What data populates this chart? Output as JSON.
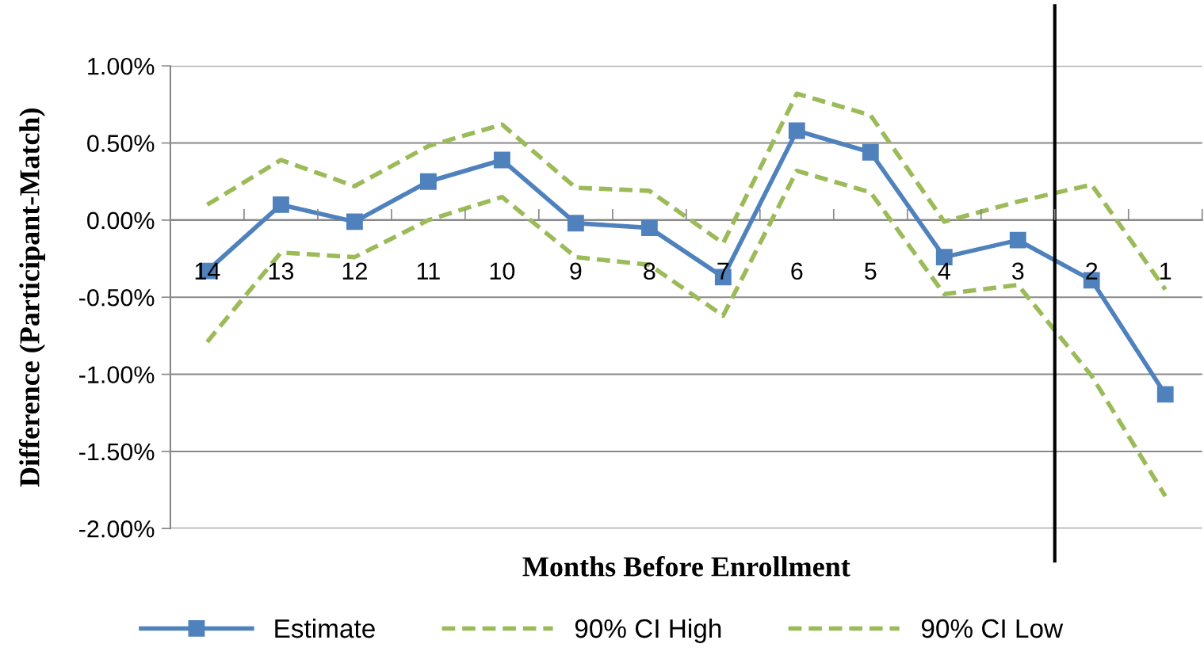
{
  "chart_data": {
    "type": "line",
    "xlabel": "Months Before Enrollment",
    "ylabel": "Difference (Participant-Match)",
    "x": [
      14,
      13,
      12,
      11,
      10,
      9,
      8,
      7,
      6,
      5,
      4,
      3,
      2,
      1
    ],
    "xlim": [
      14.5,
      0.5
    ],
    "xticks": [
      14,
      13,
      12,
      11,
      10,
      9,
      8,
      7,
      6,
      5,
      4,
      3,
      2,
      1,
      {
        "value": 14.5,
        "label": null
      },
      {
        "value": 13.5,
        "label": null
      },
      {
        "value": 12.5,
        "label": null
      },
      {
        "value": 11.5,
        "label": null
      },
      {
        "value": 10.5,
        "label": null
      },
      {
        "value": 9.5,
        "label": null
      },
      {
        "value": 8.5,
        "label": null
      },
      {
        "value": 7.5,
        "label": null
      },
      {
        "value": 6.5,
        "label": null
      },
      {
        "value": 5.5,
        "label": null
      },
      {
        "value": 4.5,
        "label": null
      },
      {
        "value": 3.5,
        "label": null
      },
      {
        "value": 2.5,
        "label": null
      },
      {
        "value": 1.5,
        "label": null
      },
      {
        "value": 0.5,
        "label": null
      }
    ],
    "ylim": [
      -2,
      1
    ],
    "yticks": [
      {
        "value": 1,
        "label": "1.00%"
      },
      {
        "value": 0.5,
        "label": "0.50%"
      },
      {
        "value": 0,
        "label": "0.00%"
      },
      {
        "value": -0.5,
        "label": "-0.50%"
      },
      {
        "value": -1,
        "label": "-1.00%"
      },
      {
        "value": -1.5,
        "label": "-1.50%"
      },
      {
        "value": -2,
        "label": "-2.00%"
      }
    ],
    "grid": "y",
    "legend": "bottom",
    "ref_lines": [
      {
        "axis": "x",
        "value": 2.5,
        "color": "#000000"
      }
    ],
    "series": [
      {
        "name": "Estimate",
        "color": "#4f81bd",
        "marker": "square",
        "line_style": "solid",
        "values": [
          -0.33,
          0.1,
          -0.01,
          0.25,
          0.39,
          -0.02,
          -0.05,
          -0.37,
          0.58,
          0.44,
          -0.24,
          -0.13,
          -0.39,
          -1.13
        ]
      },
      {
        "name": "90% CI High",
        "color": "#9bbb59",
        "marker": "none",
        "line_style": "dashed",
        "values": [
          0.1,
          0.39,
          0.22,
          0.48,
          0.62,
          0.21,
          0.19,
          -0.15,
          0.82,
          0.68,
          -0.01,
          0.12,
          0.23,
          -0.45
        ]
      },
      {
        "name": "90% CI Low",
        "color": "#9bbb59",
        "marker": "none",
        "line_style": "dashed",
        "values": [
          -0.79,
          -0.21,
          -0.24,
          0.0,
          0.15,
          -0.24,
          -0.29,
          -0.62,
          0.32,
          0.18,
          -0.48,
          -0.42,
          -1.01,
          -1.79
        ]
      }
    ]
  }
}
